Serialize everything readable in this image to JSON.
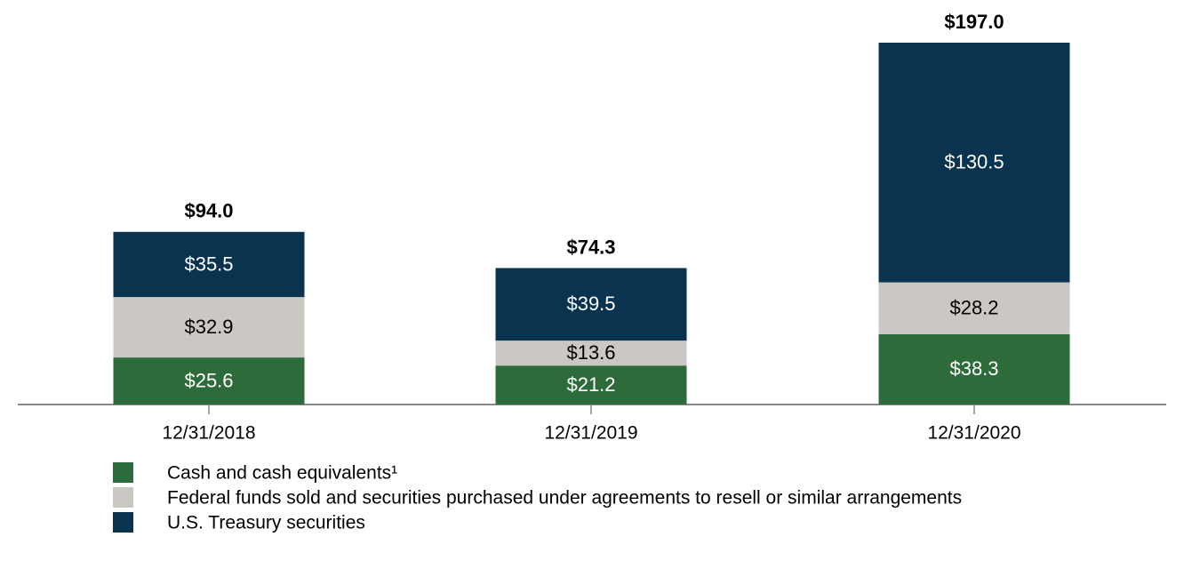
{
  "chart_data": {
    "type": "stacked_bar",
    "categories": [
      "12/31/2018",
      "12/31/2019",
      "12/31/2020"
    ],
    "series": [
      {
        "name": "Cash and cash equivalents¹",
        "color": "#2e6b3a",
        "label_color": "#ffffff",
        "values": [
          25.6,
          21.2,
          38.3
        ],
        "value_labels": [
          "$25.6",
          "$21.2",
          "$38.3"
        ]
      },
      {
        "name": "Federal funds sold and securities purchased under agreements to resell or similar arrangements",
        "color": "#cbc8c3",
        "label_color": "#000000",
        "values": [
          32.9,
          13.6,
          28.2
        ],
        "value_labels": [
          "$32.9",
          "$13.6",
          "$28.2"
        ]
      },
      {
        "name": "U.S. Treasury securities",
        "color": "#0a3350",
        "label_color": "#ffffff",
        "values": [
          35.5,
          39.5,
          130.5
        ],
        "value_labels": [
          "$35.5",
          "$39.5",
          "$130.5"
        ]
      }
    ],
    "totals": [
      94.0,
      74.3,
      197.0
    ],
    "total_labels": [
      "$94.0",
      "$74.3",
      "$197.0"
    ]
  }
}
